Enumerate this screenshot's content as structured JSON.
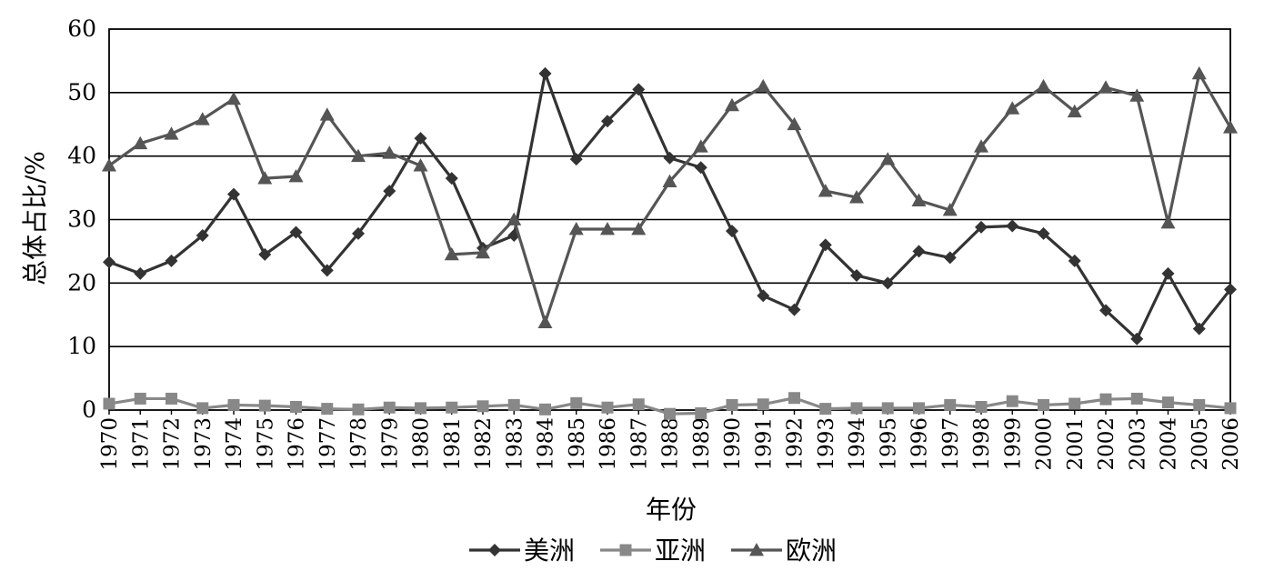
{
  "chart_data": {
    "type": "line",
    "title": "",
    "xlabel": "年份",
    "ylabel": "总体占比/%",
    "ylim": [
      0,
      60
    ],
    "yticks": [
      0,
      10,
      20,
      30,
      40,
      50,
      60
    ],
    "grid": "horizontal",
    "legend_position": "bottom",
    "x": [
      "1970",
      "1971",
      "1972",
      "1973",
      "1974",
      "1975",
      "1976",
      "1977",
      "1978",
      "1979",
      "1980",
      "1981",
      "1982",
      "1983",
      "1984",
      "1985",
      "1986",
      "1987",
      "1988",
      "1989",
      "1990",
      "1991",
      "1992",
      "1993",
      "1994",
      "1995",
      "1996",
      "1997",
      "1998",
      "1999",
      "2000",
      "2001",
      "2002",
      "2003",
      "2004",
      "2005",
      "2006"
    ],
    "series": [
      {
        "name": "美洲",
        "marker": "diamond",
        "color": "#333333",
        "values": [
          23.3,
          21.5,
          23.5,
          27.5,
          34.0,
          24.5,
          28.0,
          22.0,
          27.8,
          34.5,
          42.8,
          36.5,
          25.5,
          27.5,
          53.0,
          39.5,
          45.5,
          50.5,
          39.7,
          38.2,
          28.2,
          18.0,
          15.8,
          26.0,
          21.2,
          20.0,
          25.0,
          24.0,
          28.8,
          29.0,
          27.8,
          23.5,
          15.7,
          11.2,
          21.5,
          12.8,
          19.0
        ]
      },
      {
        "name": "亚洲",
        "marker": "square",
        "color": "#888888",
        "values": [
          1.0,
          1.8,
          1.8,
          0.3,
          0.8,
          0.7,
          0.5,
          0.2,
          0.1,
          0.4,
          0.3,
          0.4,
          0.6,
          0.8,
          0.1,
          1.1,
          0.4,
          0.9,
          -0.6,
          -0.5,
          0.8,
          0.9,
          1.9,
          0.2,
          0.3,
          0.3,
          0.3,
          0.8,
          0.5,
          1.4,
          0.8,
          1.0,
          1.7,
          1.8,
          1.2,
          0.8,
          0.3
        ]
      },
      {
        "name": "欧洲",
        "marker": "triangle",
        "color": "#555555",
        "values": [
          38.5,
          42.0,
          43.5,
          45.8,
          49.0,
          36.5,
          36.8,
          46.5,
          40.0,
          40.5,
          38.5,
          24.5,
          24.8,
          30.0,
          13.8,
          28.5,
          28.5,
          28.5,
          36.0,
          41.5,
          48.0,
          51.0,
          45.0,
          34.5,
          33.5,
          39.5,
          33.0,
          31.5,
          41.5,
          47.5,
          51.0,
          47.0,
          50.8,
          49.5,
          29.5,
          53.0,
          44.5
        ]
      }
    ]
  }
}
